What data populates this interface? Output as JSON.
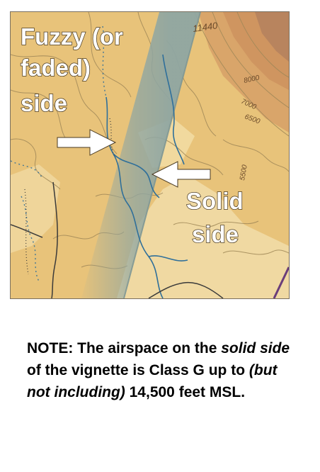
{
  "map": {
    "labels": {
      "fuzzy_line1": "Fuzzy (or",
      "fuzzy_line2": "faded)",
      "fuzzy_line3": "side",
      "solid_line1": "Solid",
      "solid_line2": "side"
    },
    "elevations": {
      "peak": "11440",
      "contour_8000": "8000",
      "contour_7000": "7000",
      "contour_6500": "6500",
      "contour_5500": "5500"
    },
    "colors": {
      "terrain_base": "#e8c37a",
      "terrain_light": "#f0d9a2",
      "terrain_high": "#d9a56a",
      "vignette": "#8fa6a2",
      "contour": "#a08858",
      "river": "#2f6f9a",
      "road": "#3a3a3a",
      "label_white": "#ffffff"
    }
  },
  "note": {
    "part1": "NOTE: The airspace on the ",
    "part2": "solid side",
    "part3": " of the vignette is Class G up to ",
    "part4": "(but not including)",
    "part5": " 14,500 feet MSL."
  }
}
